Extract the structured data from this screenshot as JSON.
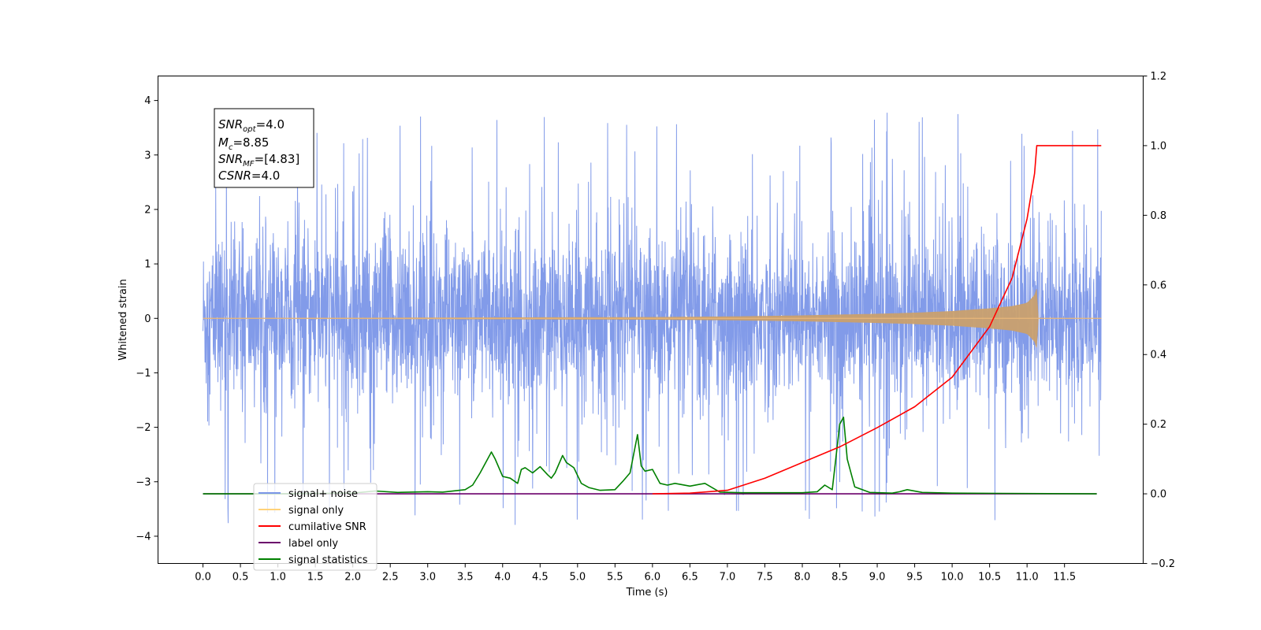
{
  "chart_data": {
    "type": "line",
    "xlabel": "Time (s)",
    "ylabel": "Whitened strain",
    "xlim": [
      -0.6,
      12.55
    ],
    "ylim": [
      -4.5,
      4.45
    ],
    "ylim_right": [
      -0.2,
      1.2
    ],
    "grid": false,
    "x_ticks": [
      "0.0",
      "0.5",
      "1.0",
      "1.5",
      "2.0",
      "2.5",
      "3.0",
      "3.5",
      "4.0",
      "4.5",
      "5.0",
      "5.5",
      "6.0",
      "6.5",
      "7.0",
      "7.5",
      "8.0",
      "8.5",
      "9.0",
      "9.5",
      "10.0",
      "10.5",
      "11.0",
      "11.5"
    ],
    "y_ticks": [
      "4",
      "3",
      "2",
      "1",
      "0",
      "−1",
      "−2",
      "−3",
      "−4"
    ],
    "y_ticks_right": [
      "1.2",
      "1.0",
      "0.8",
      "0.6",
      "0.4",
      "0.2",
      "0.0",
      "−0.2"
    ],
    "annotation": {
      "snr_opt": "4.0",
      "mc": "8.85",
      "snr_mf": "[4.83]",
      "csnr": "4.0"
    },
    "legend_position": "lower-left",
    "series": [
      {
        "name": "signal+ noise",
        "color": "#7b96e8",
        "axis": "left",
        "note": "noise band, amplitude approx ±1.5 with spikes to ±4",
        "x_range": [
          0.0,
          11.99
        ],
        "envelope": {
          "typical": 1.5,
          "max": 4.05,
          "min": -4.1
        }
      },
      {
        "name": "signal only",
        "color": "#c9a06e",
        "axis": "left",
        "x": [
          0.0,
          6.0,
          7.0,
          8.0,
          9.0,
          9.5,
          10.0,
          10.5,
          10.8,
          11.0,
          11.1,
          11.13,
          11.15,
          11.99
        ],
        "amplitude": [
          0.0,
          0.02,
          0.03,
          0.05,
          0.08,
          0.1,
          0.13,
          0.18,
          0.22,
          0.28,
          0.42,
          0.55,
          0.0,
          0.0
        ]
      },
      {
        "name": "cumilative SNR",
        "color": "#ff0000",
        "axis": "right",
        "x": [
          6.0,
          6.5,
          7.0,
          7.5,
          8.0,
          8.5,
          9.0,
          9.5,
          10.0,
          10.5,
          10.8,
          11.0,
          11.1,
          11.13,
          11.99
        ],
        "values": [
          0.0,
          0.002,
          0.01,
          0.045,
          0.09,
          0.135,
          0.19,
          0.25,
          0.335,
          0.48,
          0.62,
          0.79,
          0.92,
          1.0,
          1.0
        ]
      },
      {
        "name": "label only",
        "color": "#6b006b",
        "axis": "right",
        "x": [
          0.0,
          11.93
        ],
        "values": [
          0.0,
          0.0
        ]
      },
      {
        "name": "signal statistics",
        "color": "#008000",
        "axis": "right",
        "x": [
          0.0,
          1.0,
          2.0,
          2.3,
          2.6,
          3.0,
          3.2,
          3.5,
          3.6,
          3.7,
          3.85,
          3.9,
          4.0,
          4.1,
          4.2,
          4.25,
          4.3,
          4.4,
          4.5,
          4.6,
          4.65,
          4.7,
          4.8,
          4.85,
          4.95,
          5.05,
          5.15,
          5.3,
          5.5,
          5.6,
          5.7,
          5.8,
          5.85,
          5.9,
          6.0,
          6.1,
          6.2,
          6.3,
          6.5,
          6.7,
          6.9,
          7.2,
          8.0,
          8.2,
          8.3,
          8.4,
          8.5,
          8.55,
          8.6,
          8.7,
          8.9,
          9.2,
          9.3,
          9.4,
          9.6,
          10.0,
          11.93
        ],
        "values": [
          0.0,
          0.0,
          0.002,
          0.008,
          0.004,
          0.006,
          0.005,
          0.012,
          0.025,
          0.06,
          0.12,
          0.1,
          0.05,
          0.045,
          0.03,
          0.07,
          0.075,
          0.06,
          0.078,
          0.055,
          0.045,
          0.06,
          0.11,
          0.09,
          0.075,
          0.03,
          0.018,
          0.01,
          0.012,
          0.035,
          0.06,
          0.17,
          0.08,
          0.065,
          0.07,
          0.03,
          0.025,
          0.03,
          0.022,
          0.03,
          0.005,
          0.003,
          0.003,
          0.006,
          0.025,
          0.012,
          0.2,
          0.22,
          0.1,
          0.02,
          0.004,
          0.002,
          0.006,
          0.012,
          0.004,
          0.002,
          0.0
        ]
      }
    ]
  }
}
